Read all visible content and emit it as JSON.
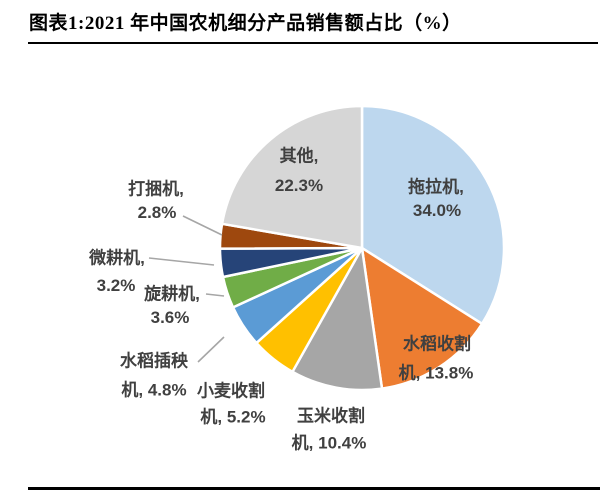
{
  "title": "图表1:2021 年中国农机细分产品销售额占比（%）",
  "chart_data": {
    "type": "pie",
    "title": "2021 年中国农机细分产品销售额占比（%）",
    "unit": "%",
    "start_angle_deg": 0,
    "direction": "clockwise",
    "legend": "none",
    "slices": [
      {
        "id": "tractor",
        "label": "拖拉机",
        "value": 34.0,
        "color": "#BDD7EE",
        "label_lines": [
          "拖拉机,",
          "34.0%"
        ]
      },
      {
        "id": "rice-harvester",
        "label": "水稻收割机",
        "value": 13.8,
        "color": "#ED7D31",
        "label_lines": [
          "水稻收割",
          "机, 13.8%"
        ]
      },
      {
        "id": "corn-harvester",
        "label": "玉米收割机",
        "value": 10.4,
        "color": "#A6A6A6",
        "label_lines": [
          "玉米收割",
          "机, 10.4%"
        ]
      },
      {
        "id": "wheat-harvester",
        "label": "小麦收割机",
        "value": 5.2,
        "color": "#FFC000",
        "label_lines": [
          "小麦收割",
          "机, 5.2%"
        ]
      },
      {
        "id": "rice-transplanter",
        "label": "水稻插秧机",
        "value": 4.8,
        "color": "#5B9BD5",
        "label_lines": [
          "水稻插秧",
          "机, 4.8%"
        ]
      },
      {
        "id": "rotary-tiller",
        "label": "旋耕机",
        "value": 3.6,
        "color": "#70AD47",
        "label_lines": [
          "旋耕机,",
          "3.6%"
        ]
      },
      {
        "id": "micro-tiller",
        "label": "微耕机",
        "value": 3.2,
        "color": "#264478",
        "label_lines": [
          "微耕机,",
          "3.2%"
        ]
      },
      {
        "id": "baler",
        "label": "打捆机",
        "value": 2.8,
        "color": "#9E480E",
        "label_lines": [
          "打捆机,",
          "2.8%"
        ]
      },
      {
        "id": "other",
        "label": "其他",
        "value": 22.3,
        "color": "#D6D6D6",
        "label_lines": [
          "其他,",
          "22.3%"
        ]
      }
    ]
  },
  "styles": {
    "label_color": "#404040",
    "leader_color": "#A6A6A6",
    "rule_color": "#000000",
    "slice_border_color": "#FFFFFF"
  }
}
